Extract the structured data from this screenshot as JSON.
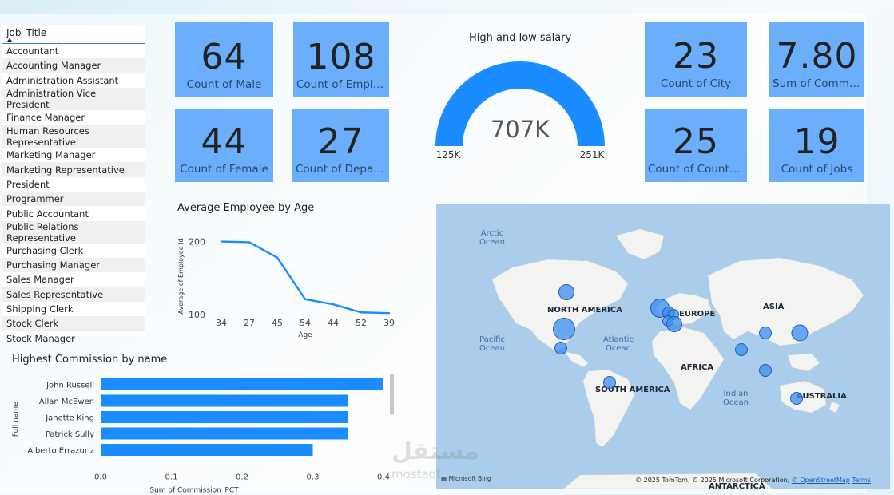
{
  "slicer": {
    "header": "Job_Title",
    "items": [
      "Accountant",
      "Accounting Manager",
      "Administration Assistant",
      "Administration Vice President",
      "Finance Manager",
      "Human Resources Representative",
      "Marketing Manager",
      "Marketing Representative",
      "President",
      "Programmer",
      "Public Accountant",
      "Public Relations Representative",
      "Purchasing Clerk",
      "Purchasing Manager",
      "Sales Manager",
      "Sales Representative",
      "Shipping Clerk",
      "Stock Clerk",
      "Stock Manager"
    ]
  },
  "kpis": {
    "male": {
      "value": "64",
      "label": "Count of Male"
    },
    "employees": {
      "value": "108",
      "label": "Count of Employees"
    },
    "female": {
      "value": "44",
      "label": "Count of Female"
    },
    "departments": {
      "value": "27",
      "label": "Count of Departments"
    },
    "city": {
      "value": "23",
      "label": "Count of City"
    },
    "commission": {
      "value": "7.80",
      "label": "Sum of Commission_PCT"
    },
    "countries": {
      "value": "25",
      "label": "Count of Countries"
    },
    "jobs": {
      "value": "19",
      "label": "Count of Jobs"
    }
  },
  "gauge": {
    "title": "High and low salary",
    "value": "707K",
    "min_label": "125K",
    "max_label": "251K",
    "fill_fraction": 1.0,
    "color": "#1a8cff"
  },
  "chart_data": [
    {
      "type": "line",
      "title": "Average Employee by Age",
      "xlabel": "Age",
      "ylabel": "Average of Employee Id",
      "categories": [
        "34",
        "27",
        "45",
        "54",
        "44",
        "52",
        "39"
      ],
      "values": [
        200,
        199,
        178,
        121,
        114,
        103,
        102
      ],
      "yticks": [
        100,
        200
      ],
      "ylim": [
        100,
        205
      ],
      "color": "#1a8cff"
    },
    {
      "type": "bar",
      "orientation": "horizontal",
      "title": "Highest Commission by name",
      "xlabel": "Sum of Commission_PCT",
      "ylabel": "Full name",
      "categories": [
        "John Russell",
        "Allan McEwen",
        "Janette King",
        "Patrick Sully",
        "Alberto Errazuriz"
      ],
      "values": [
        0.4,
        0.35,
        0.35,
        0.35,
        0.3
      ],
      "xticks": [
        "0.0",
        "0.1",
        "0.2",
        "0.3",
        "0.4"
      ],
      "xlim": [
        0,
        0.4
      ],
      "color": "#1a8cff"
    }
  ],
  "map": {
    "ocean_labels": [
      {
        "text": "Arctic\nOcean"
      },
      {
        "text": "Pacific\nOcean"
      },
      {
        "text": "Atlantic\nOcean"
      },
      {
        "text": "Indian\nOcean"
      }
    ],
    "continent_labels": [
      "NORTH AMERICA",
      "EUROPE",
      "ASIA",
      "AFRICA",
      "SOUTH AMERICA",
      "AUSTRALIA",
      "ANTARCTICA"
    ],
    "attribution_prefix": "© 2025 TomTom, © 2025 Microsoft Corporation,",
    "attribution_osm": "© OpenStreetMap",
    "attribution_terms": "Terms",
    "provider": "Microsoft Bing"
  },
  "watermark": {
    "arabic": "مستقل",
    "latin": "mostaql"
  }
}
